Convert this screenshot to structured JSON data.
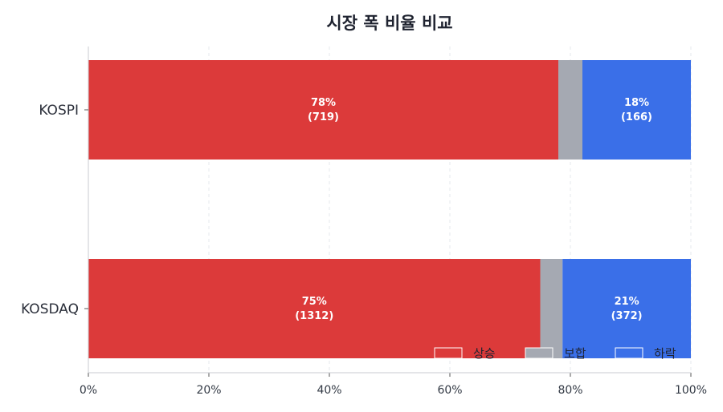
{
  "chart_data": {
    "type": "bar",
    "orientation": "horizontal",
    "stacked": true,
    "title": "시장 폭 비율 비교",
    "categories": [
      "KOSPI",
      "KOSDAQ"
    ],
    "series": [
      {
        "name": "상승",
        "color": "#dc3a3a",
        "values": [
          78,
          75
        ],
        "labels": [
          "78%",
          "75%"
        ],
        "counts": [
          "(719)",
          "(1312)"
        ]
      },
      {
        "name": "보합",
        "color": "#a5a9b2",
        "values": [
          4,
          3.7
        ],
        "labels": [
          "",
          ""
        ],
        "counts": [
          "",
          ""
        ]
      },
      {
        "name": "하락",
        "color": "#3a6fe8",
        "values": [
          18,
          21.3
        ],
        "labels": [
          "18%",
          "21%"
        ],
        "counts": [
          "(166)",
          "(372)"
        ]
      }
    ],
    "xlim": [
      0,
      100
    ],
    "xticks": [
      "0%",
      "20%",
      "40%",
      "60%",
      "80%",
      "100%"
    ],
    "xlabel": "",
    "ylabel": "",
    "grid": "vertical dashed",
    "legend": "bottom-right"
  }
}
